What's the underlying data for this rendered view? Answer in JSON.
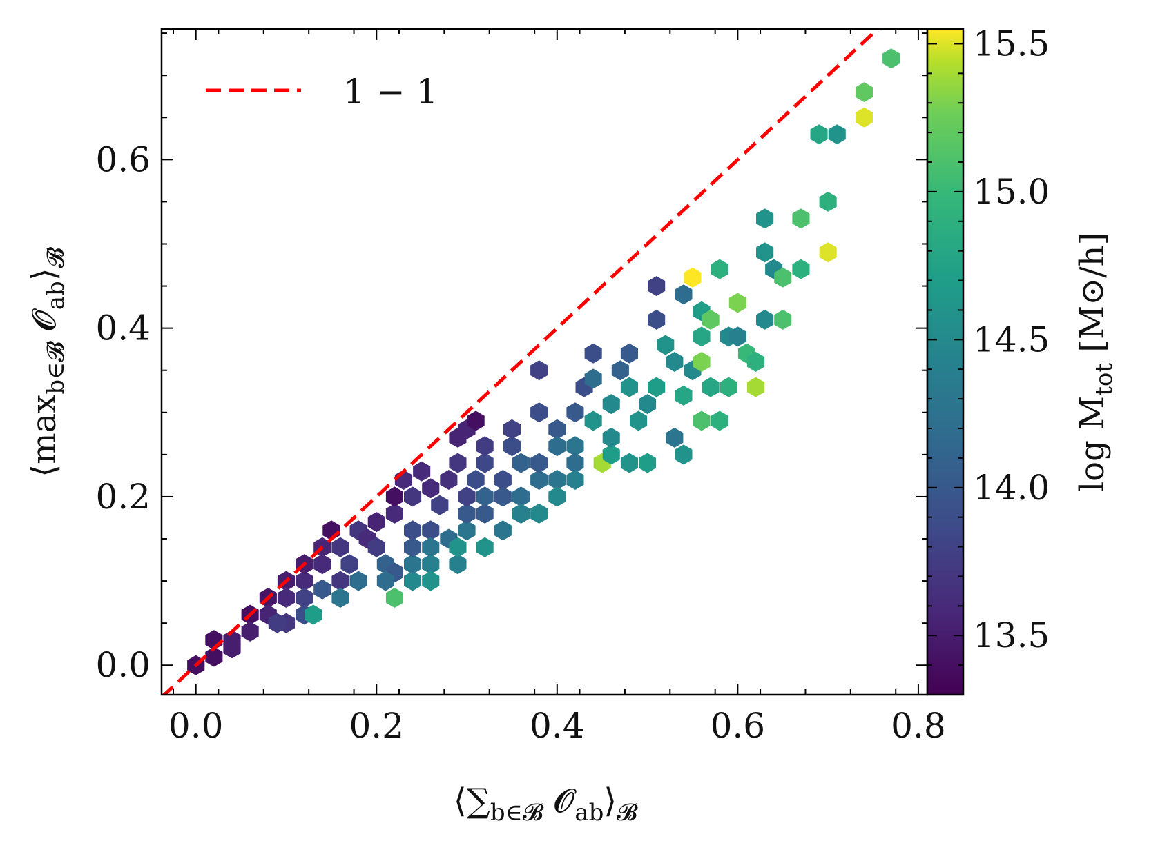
{
  "chart_data": {
    "type": "hexbin",
    "title": "",
    "xlabel": "⟨∑b∈𝓑 𝓞ab⟩𝓑",
    "xlabel_main": "⟨∑",
    "xlabel_sub1": "b∈𝓑",
    "xlabel_mid": " 𝓞",
    "xlabel_sub2": "ab",
    "xlabel_end": "⟩",
    "xlabel_sub3": "𝓑",
    "ylabel": "⟨maxb∈𝓑 𝓞ab⟩𝓑",
    "ylabel_main": "⟨max",
    "ylabel_sub1": "b∈𝓑",
    "ylabel_mid": " 𝓞",
    "ylabel_sub2": "ab",
    "ylabel_end": "⟩",
    "ylabel_sub3": "𝓑",
    "xlim": [
      -0.038,
      0.81
    ],
    "ylim": [
      -0.035,
      0.755
    ],
    "xticks": [
      0.0,
      0.2,
      0.4,
      0.6,
      0.8
    ],
    "xtick_labels": [
      "0.0",
      "0.2",
      "0.4",
      "0.6",
      "0.8"
    ],
    "yticks": [
      0.0,
      0.2,
      0.4,
      0.6
    ],
    "ytick_labels": [
      "0.0",
      "0.2",
      "0.4",
      "0.6"
    ],
    "colorbar": {
      "label": "log Mtot [M⊙/h]",
      "label_main": "log M",
      "label_sub": "tot",
      "label_end": " [M⊙/h]",
      "colormap": "viridis",
      "range": [
        13.3,
        15.55
      ],
      "ticks": [
        13.5,
        14.0,
        14.5,
        15.0,
        15.5
      ],
      "tick_labels": [
        "13.5",
        "14.0",
        "14.5",
        "15.0",
        "15.5"
      ]
    },
    "reference_line": {
      "label": "1 − 1",
      "label_text": "1 − 1",
      "slope": 1,
      "intercept": 0,
      "color": "#ff0000",
      "style": "dashed"
    },
    "legend_position": "top-left",
    "hexbins": [
      [
        0.0,
        0.0,
        13.4
      ],
      [
        0.02,
        0.03,
        13.4
      ],
      [
        0.04,
        0.02,
        13.5
      ],
      [
        0.02,
        0.01,
        13.4
      ],
      [
        0.06,
        0.06,
        13.4
      ],
      [
        0.08,
        0.08,
        13.45
      ],
      [
        0.06,
        0.04,
        13.5
      ],
      [
        0.04,
        0.03,
        13.5
      ],
      [
        0.1,
        0.1,
        13.5
      ],
      [
        0.1,
        0.08,
        13.6
      ],
      [
        0.12,
        0.1,
        13.6
      ],
      [
        0.08,
        0.06,
        13.55
      ],
      [
        0.12,
        0.12,
        13.5
      ],
      [
        0.14,
        0.14,
        13.55
      ],
      [
        0.14,
        0.12,
        13.6
      ],
      [
        0.15,
        0.16,
        13.4
      ],
      [
        0.1,
        0.05,
        13.7
      ],
      [
        0.09,
        0.05,
        13.75
      ],
      [
        0.12,
        0.06,
        13.9
      ],
      [
        0.13,
        0.06,
        14.7
      ],
      [
        0.12,
        0.08,
        13.8
      ],
      [
        0.14,
        0.09,
        14.0
      ],
      [
        0.16,
        0.1,
        13.7
      ],
      [
        0.16,
        0.08,
        14.3
      ],
      [
        0.18,
        0.1,
        14.2
      ],
      [
        0.17,
        0.12,
        13.8
      ],
      [
        0.16,
        0.14,
        13.7
      ],
      [
        0.18,
        0.16,
        13.7
      ],
      [
        0.19,
        0.15,
        13.6
      ],
      [
        0.2,
        0.17,
        13.55
      ],
      [
        0.2,
        0.14,
        13.75
      ],
      [
        0.22,
        0.18,
        13.6
      ],
      [
        0.22,
        0.2,
        13.4
      ],
      [
        0.23,
        0.22,
        13.6
      ],
      [
        0.24,
        0.2,
        13.7
      ],
      [
        0.25,
        0.23,
        13.6
      ],
      [
        0.26,
        0.21,
        13.6
      ],
      [
        0.21,
        0.12,
        14.1
      ],
      [
        0.22,
        0.11,
        14.0
      ],
      [
        0.21,
        0.1,
        14.2
      ],
      [
        0.22,
        0.08,
        15.1
      ],
      [
        0.24,
        0.1,
        14.5
      ],
      [
        0.24,
        0.12,
        14.3
      ],
      [
        0.24,
        0.14,
        14.0
      ],
      [
        0.24,
        0.16,
        13.9
      ],
      [
        0.26,
        0.16,
        13.9
      ],
      [
        0.26,
        0.14,
        14.3
      ],
      [
        0.26,
        0.12,
        14.4
      ],
      [
        0.26,
        0.1,
        14.6
      ],
      [
        0.27,
        0.19,
        13.8
      ],
      [
        0.28,
        0.22,
        13.65
      ],
      [
        0.29,
        0.24,
        13.7
      ],
      [
        0.29,
        0.27,
        13.55
      ],
      [
        0.3,
        0.28,
        13.55
      ],
      [
        0.31,
        0.29,
        13.4
      ],
      [
        0.28,
        0.15,
        14.2
      ],
      [
        0.29,
        0.12,
        14.4
      ],
      [
        0.29,
        0.14,
        14.6
      ],
      [
        0.3,
        0.16,
        14.3
      ],
      [
        0.3,
        0.18,
        14.0
      ],
      [
        0.3,
        0.2,
        13.8
      ],
      [
        0.31,
        0.22,
        13.9
      ],
      [
        0.32,
        0.24,
        13.85
      ],
      [
        0.32,
        0.26,
        13.75
      ],
      [
        0.32,
        0.2,
        14.1
      ],
      [
        0.32,
        0.18,
        14.0
      ],
      [
        0.32,
        0.14,
        14.6
      ],
      [
        0.34,
        0.16,
        14.3
      ],
      [
        0.34,
        0.2,
        14.0
      ],
      [
        0.34,
        0.22,
        13.9
      ],
      [
        0.35,
        0.26,
        13.9
      ],
      [
        0.35,
        0.28,
        13.8
      ],
      [
        0.36,
        0.24,
        14.1
      ],
      [
        0.36,
        0.2,
        14.2
      ],
      [
        0.36,
        0.18,
        14.4
      ],
      [
        0.38,
        0.18,
        14.5
      ],
      [
        0.38,
        0.22,
        14.2
      ],
      [
        0.38,
        0.24,
        14.0
      ],
      [
        0.38,
        0.3,
        13.9
      ],
      [
        0.38,
        0.35,
        13.8
      ],
      [
        0.4,
        0.28,
        14.0
      ],
      [
        0.4,
        0.26,
        14.2
      ],
      [
        0.4,
        0.22,
        14.3
      ],
      [
        0.4,
        0.2,
        14.5
      ],
      [
        0.42,
        0.26,
        14.3
      ],
      [
        0.42,
        0.24,
        14.2
      ],
      [
        0.42,
        0.22,
        14.4
      ],
      [
        0.42,
        0.3,
        14.0
      ],
      [
        0.43,
        0.33,
        13.9
      ],
      [
        0.44,
        0.29,
        14.6
      ],
      [
        0.44,
        0.34,
        14.2
      ],
      [
        0.44,
        0.37,
        13.9
      ],
      [
        0.45,
        0.24,
        15.4
      ],
      [
        0.46,
        0.25,
        14.7
      ],
      [
        0.46,
        0.27,
        14.5
      ],
      [
        0.46,
        0.31,
        14.5
      ],
      [
        0.47,
        0.35,
        14.1
      ],
      [
        0.48,
        0.37,
        14.0
      ],
      [
        0.48,
        0.33,
        14.6
      ],
      [
        0.48,
        0.24,
        14.6
      ],
      [
        0.49,
        0.29,
        14.6
      ],
      [
        0.5,
        0.31,
        14.5
      ],
      [
        0.5,
        0.24,
        14.7
      ],
      [
        0.51,
        0.33,
        14.7
      ],
      [
        0.51,
        0.41,
        13.9
      ],
      [
        0.51,
        0.45,
        13.8
      ],
      [
        0.52,
        0.38,
        14.6
      ],
      [
        0.53,
        0.36,
        14.5
      ],
      [
        0.53,
        0.27,
        14.3
      ],
      [
        0.54,
        0.32,
        14.8
      ],
      [
        0.54,
        0.25,
        14.6
      ],
      [
        0.54,
        0.44,
        14.2
      ],
      [
        0.55,
        0.46,
        15.55
      ],
      [
        0.55,
        0.35,
        14.5
      ],
      [
        0.56,
        0.39,
        14.8
      ],
      [
        0.56,
        0.42,
        14.7
      ],
      [
        0.56,
        0.29,
        15.1
      ],
      [
        0.56,
        0.36,
        15.3
      ],
      [
        0.57,
        0.33,
        14.8
      ],
      [
        0.57,
        0.41,
        15.2
      ],
      [
        0.58,
        0.47,
        14.9
      ],
      [
        0.58,
        0.29,
        14.9
      ],
      [
        0.59,
        0.33,
        14.9
      ],
      [
        0.59,
        0.39,
        14.5
      ],
      [
        0.6,
        0.39,
        14.4
      ],
      [
        0.61,
        0.37,
        15.0
      ],
      [
        0.62,
        0.33,
        15.4
      ],
      [
        0.62,
        0.36,
        14.9
      ],
      [
        0.63,
        0.41,
        14.5
      ],
      [
        0.63,
        0.49,
        14.6
      ],
      [
        0.63,
        0.53,
        14.6
      ],
      [
        0.64,
        0.47,
        14.5
      ],
      [
        0.65,
        0.41,
        15.1
      ],
      [
        0.65,
        0.46,
        15.1
      ],
      [
        0.67,
        0.47,
        14.9
      ],
      [
        0.67,
        0.53,
        15.1
      ],
      [
        0.7,
        0.55,
        14.9
      ],
      [
        0.7,
        0.49,
        15.5
      ],
      [
        0.69,
        0.63,
        14.8
      ],
      [
        0.71,
        0.63,
        14.6
      ],
      [
        0.74,
        0.68,
        15.2
      ],
      [
        0.74,
        0.65,
        15.5
      ],
      [
        0.77,
        0.72,
        15.1
      ],
      [
        0.6,
        0.43,
        15.3
      ]
    ]
  }
}
